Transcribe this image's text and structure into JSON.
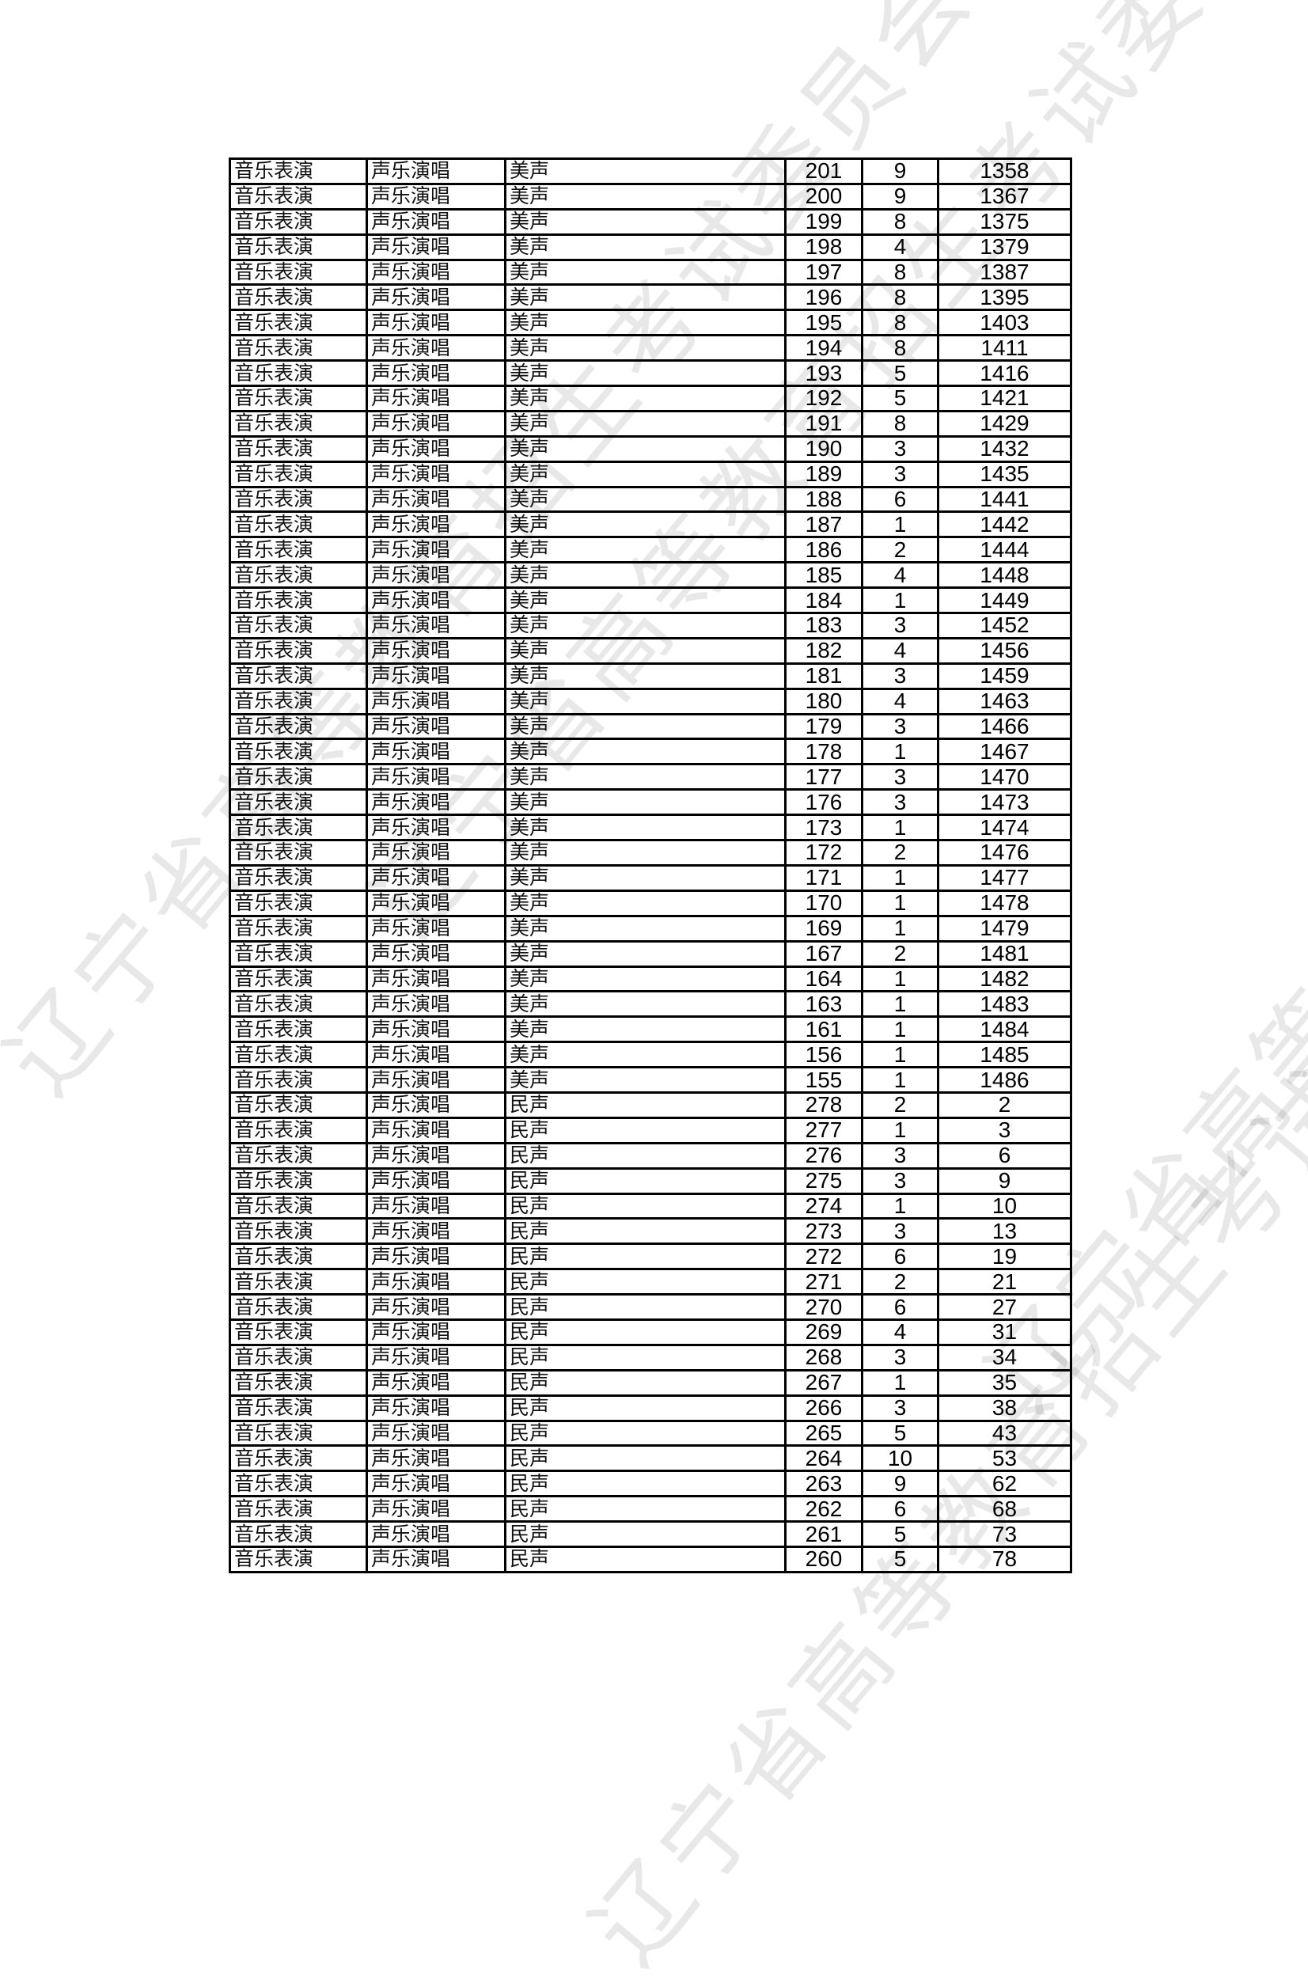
{
  "watermark": "辽宁省高等教育招生考试委员会办公室",
  "table": {
    "rows": [
      [
        "音乐表演",
        "声乐演唱",
        "美声",
        "201",
        "9",
        "1358"
      ],
      [
        "音乐表演",
        "声乐演唱",
        "美声",
        "200",
        "9",
        "1367"
      ],
      [
        "音乐表演",
        "声乐演唱",
        "美声",
        "199",
        "8",
        "1375"
      ],
      [
        "音乐表演",
        "声乐演唱",
        "美声",
        "198",
        "4",
        "1379"
      ],
      [
        "音乐表演",
        "声乐演唱",
        "美声",
        "197",
        "8",
        "1387"
      ],
      [
        "音乐表演",
        "声乐演唱",
        "美声",
        "196",
        "8",
        "1395"
      ],
      [
        "音乐表演",
        "声乐演唱",
        "美声",
        "195",
        "8",
        "1403"
      ],
      [
        "音乐表演",
        "声乐演唱",
        "美声",
        "194",
        "8",
        "1411"
      ],
      [
        "音乐表演",
        "声乐演唱",
        "美声",
        "193",
        "5",
        "1416"
      ],
      [
        "音乐表演",
        "声乐演唱",
        "美声",
        "192",
        "5",
        "1421"
      ],
      [
        "音乐表演",
        "声乐演唱",
        "美声",
        "191",
        "8",
        "1429"
      ],
      [
        "音乐表演",
        "声乐演唱",
        "美声",
        "190",
        "3",
        "1432"
      ],
      [
        "音乐表演",
        "声乐演唱",
        "美声",
        "189",
        "3",
        "1435"
      ],
      [
        "音乐表演",
        "声乐演唱",
        "美声",
        "188",
        "6",
        "1441"
      ],
      [
        "音乐表演",
        "声乐演唱",
        "美声",
        "187",
        "1",
        "1442"
      ],
      [
        "音乐表演",
        "声乐演唱",
        "美声",
        "186",
        "2",
        "1444"
      ],
      [
        "音乐表演",
        "声乐演唱",
        "美声",
        "185",
        "4",
        "1448"
      ],
      [
        "音乐表演",
        "声乐演唱",
        "美声",
        "184",
        "1",
        "1449"
      ],
      [
        "音乐表演",
        "声乐演唱",
        "美声",
        "183",
        "3",
        "1452"
      ],
      [
        "音乐表演",
        "声乐演唱",
        "美声",
        "182",
        "4",
        "1456"
      ],
      [
        "音乐表演",
        "声乐演唱",
        "美声",
        "181",
        "3",
        "1459"
      ],
      [
        "音乐表演",
        "声乐演唱",
        "美声",
        "180",
        "4",
        "1463"
      ],
      [
        "音乐表演",
        "声乐演唱",
        "美声",
        "179",
        "3",
        "1466"
      ],
      [
        "音乐表演",
        "声乐演唱",
        "美声",
        "178",
        "1",
        "1467"
      ],
      [
        "音乐表演",
        "声乐演唱",
        "美声",
        "177",
        "3",
        "1470"
      ],
      [
        "音乐表演",
        "声乐演唱",
        "美声",
        "176",
        "3",
        "1473"
      ],
      [
        "音乐表演",
        "声乐演唱",
        "美声",
        "173",
        "1",
        "1474"
      ],
      [
        "音乐表演",
        "声乐演唱",
        "美声",
        "172",
        "2",
        "1476"
      ],
      [
        "音乐表演",
        "声乐演唱",
        "美声",
        "171",
        "1",
        "1477"
      ],
      [
        "音乐表演",
        "声乐演唱",
        "美声",
        "170",
        "1",
        "1478"
      ],
      [
        "音乐表演",
        "声乐演唱",
        "美声",
        "169",
        "1",
        "1479"
      ],
      [
        "音乐表演",
        "声乐演唱",
        "美声",
        "167",
        "2",
        "1481"
      ],
      [
        "音乐表演",
        "声乐演唱",
        "美声",
        "164",
        "1",
        "1482"
      ],
      [
        "音乐表演",
        "声乐演唱",
        "美声",
        "163",
        "1",
        "1483"
      ],
      [
        "音乐表演",
        "声乐演唱",
        "美声",
        "161",
        "1",
        "1484"
      ],
      [
        "音乐表演",
        "声乐演唱",
        "美声",
        "156",
        "1",
        "1485"
      ],
      [
        "音乐表演",
        "声乐演唱",
        "美声",
        "155",
        "1",
        "1486"
      ],
      [
        "音乐表演",
        "声乐演唱",
        "民声",
        "278",
        "2",
        "2"
      ],
      [
        "音乐表演",
        "声乐演唱",
        "民声",
        "277",
        "1",
        "3"
      ],
      [
        "音乐表演",
        "声乐演唱",
        "民声",
        "276",
        "3",
        "6"
      ],
      [
        "音乐表演",
        "声乐演唱",
        "民声",
        "275",
        "3",
        "9"
      ],
      [
        "音乐表演",
        "声乐演唱",
        "民声",
        "274",
        "1",
        "10"
      ],
      [
        "音乐表演",
        "声乐演唱",
        "民声",
        "273",
        "3",
        "13"
      ],
      [
        "音乐表演",
        "声乐演唱",
        "民声",
        "272",
        "6",
        "19"
      ],
      [
        "音乐表演",
        "声乐演唱",
        "民声",
        "271",
        "2",
        "21"
      ],
      [
        "音乐表演",
        "声乐演唱",
        "民声",
        "270",
        "6",
        "27"
      ],
      [
        "音乐表演",
        "声乐演唱",
        "民声",
        "269",
        "4",
        "31"
      ],
      [
        "音乐表演",
        "声乐演唱",
        "民声",
        "268",
        "3",
        "34"
      ],
      [
        "音乐表演",
        "声乐演唱",
        "民声",
        "267",
        "1",
        "35"
      ],
      [
        "音乐表演",
        "声乐演唱",
        "民声",
        "266",
        "3",
        "38"
      ],
      [
        "音乐表演",
        "声乐演唱",
        "民声",
        "265",
        "5",
        "43"
      ],
      [
        "音乐表演",
        "声乐演唱",
        "民声",
        "264",
        "10",
        "53"
      ],
      [
        "音乐表演",
        "声乐演唱",
        "民声",
        "263",
        "9",
        "62"
      ],
      [
        "音乐表演",
        "声乐演唱",
        "民声",
        "262",
        "6",
        "68"
      ],
      [
        "音乐表演",
        "声乐演唱",
        "民声",
        "261",
        "5",
        "73"
      ],
      [
        "音乐表演",
        "声乐演唱",
        "民声",
        "260",
        "5",
        "78"
      ]
    ]
  }
}
